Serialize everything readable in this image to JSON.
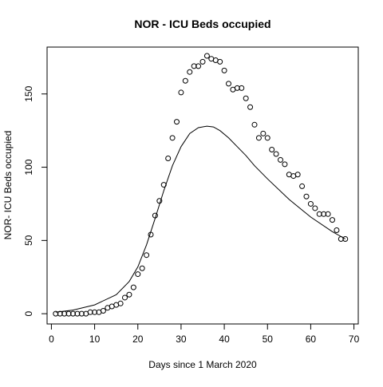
{
  "chart_data": {
    "type": "scatter",
    "title": "NOR - ICU Beds occupied",
    "xlabel": "Days since 1 March 2020",
    "ylabel": "NOR- ICU Beds occupied",
    "xlim": [
      -1,
      71
    ],
    "ylim": [
      -7,
      182
    ],
    "xticks": [
      0,
      10,
      20,
      30,
      40,
      50,
      60,
      70
    ],
    "yticks": [
      0,
      50,
      100,
      150
    ],
    "grid": false,
    "legend": "none",
    "series": [
      {
        "kind": "points",
        "marker": "open-circle",
        "x": [
          1,
          2,
          3,
          4,
          5,
          6,
          7,
          8,
          9,
          10,
          11,
          12,
          13,
          14,
          15,
          16,
          17,
          18,
          19,
          20,
          21,
          22,
          23,
          24,
          25,
          26,
          27,
          28,
          29,
          30,
          31,
          32,
          33,
          34,
          35,
          36,
          37,
          38,
          39,
          40,
          41,
          42,
          43,
          44,
          45,
          46,
          47,
          48,
          49,
          50,
          51,
          52,
          53,
          54,
          55,
          56,
          57,
          58,
          59,
          60,
          61,
          62,
          63,
          64,
          65,
          66,
          67,
          68
        ],
        "y": [
          0,
          0,
          0,
          0,
          0,
          0,
          0,
          0,
          1,
          1,
          1,
          2,
          4,
          5,
          6,
          7,
          11,
          13,
          18,
          27,
          31,
          40,
          54,
          67,
          77,
          88,
          106,
          120,
          131,
          151,
          159,
          165,
          169,
          169,
          172,
          176,
          174,
          173,
          172,
          166,
          157,
          153,
          154,
          154,
          147,
          141,
          129,
          120,
          123,
          120,
          112,
          109,
          105,
          102,
          95,
          94,
          95,
          87,
          80,
          75,
          72,
          68,
          68,
          68,
          64,
          57,
          51,
          51
        ]
      },
      {
        "kind": "line",
        "x": [
          1,
          5,
          10,
          15,
          18,
          20,
          22,
          24,
          26,
          28,
          30,
          32,
          34,
          36,
          37.5,
          39,
          41,
          43,
          45,
          47,
          50,
          55,
          60,
          65,
          68
        ],
        "y": [
          1,
          2.5,
          6,
          13,
          22,
          32,
          47,
          65,
          84,
          101,
          114,
          123,
          127,
          128,
          127.5,
          125,
          120,
          114,
          108,
          101,
          92,
          78,
          66,
          56,
          51
        ]
      }
    ]
  }
}
